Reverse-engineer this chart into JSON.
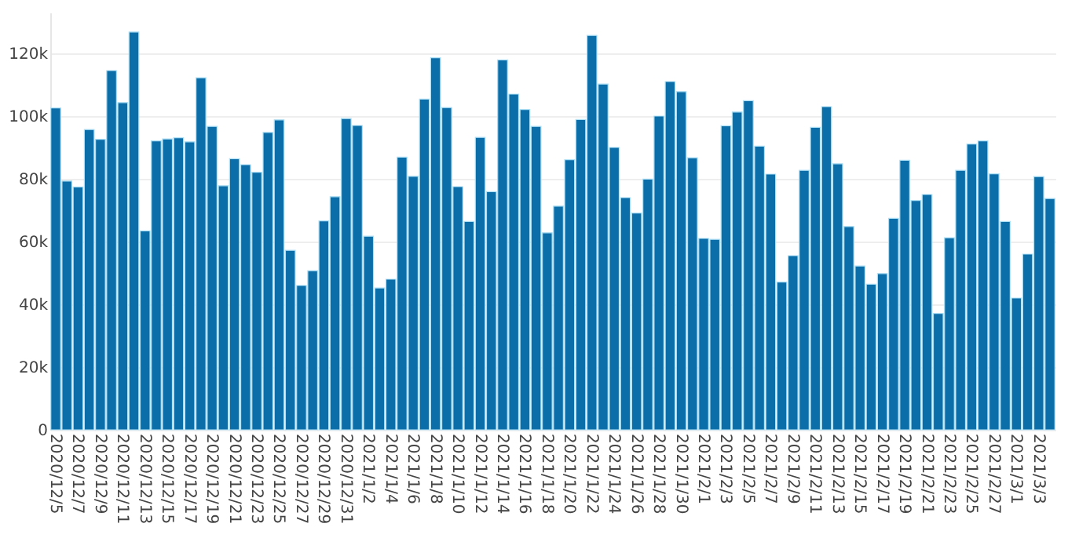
{
  "chart_data": {
    "type": "bar",
    "color": "#0b6ea9",
    "grid": "y",
    "categories": [
      "2020/12/5",
      null,
      "2020/12/7",
      null,
      "2020/12/9",
      null,
      "2020/12/11",
      null,
      "2020/12/13",
      null,
      "2020/12/15",
      null,
      "2020/12/17",
      null,
      "2020/12/19",
      null,
      "2020/12/21",
      null,
      "2020/12/23",
      null,
      "2020/12/25",
      null,
      "2020/12/27",
      null,
      "2020/12/29",
      null,
      "2020/12/31",
      null,
      "2021/1/2",
      null,
      "2021/1/4",
      null,
      "2021/1/6",
      null,
      "2021/1/8",
      null,
      "2021/1/10",
      null,
      "2021/1/12",
      null,
      "2021/1/14",
      null,
      "2021/1/16",
      null,
      "2021/1/18",
      null,
      "2021/1/20",
      null,
      "2021/1/22",
      null,
      "2021/1/24",
      null,
      "2021/1/26",
      null,
      "2021/1/28",
      null,
      "2021/1/30",
      null,
      "2021/2/1",
      null,
      "2021/2/3",
      null,
      "2021/2/5",
      null,
      "2021/2/7",
      null,
      "2021/2/9",
      null,
      "2021/2/11",
      null,
      "2021/2/13",
      null,
      "2021/2/15",
      null,
      "2021/2/17",
      null,
      "2021/2/19",
      null,
      "2021/2/21",
      null,
      "2021/2/23",
      null,
      "2021/2/25",
      null,
      "2021/2/27",
      null,
      "2021/3/1",
      null,
      "2021/3/3",
      null
    ],
    "values": [
      102600,
      79300,
      77400,
      95700,
      92600,
      114500,
      104300,
      126800,
      63400,
      92100,
      92700,
      93100,
      91800,
      112200,
      96700,
      77800,
      86400,
      84500,
      82100,
      94800,
      98800,
      57200,
      46000,
      50700,
      66600,
      74300,
      99200,
      97000,
      61700,
      45200,
      48000,
      86900,
      80800,
      105400,
      118600,
      102700,
      77500,
      66400,
      93200,
      75900,
      117900,
      107000,
      102100,
      96700,
      62800,
      71300,
      86100,
      98900,
      125700,
      110200,
      90000,
      74000,
      69100,
      79900,
      100000,
      111000,
      107800,
      86700,
      61000,
      60700,
      96900,
      101300,
      104900,
      90400,
      81500,
      47100,
      55500,
      82700,
      96400,
      103000,
      84800,
      64800,
      52200,
      46400,
      49800,
      67400,
      85900,
      73100,
      75000,
      37100,
      61200,
      82700,
      91100,
      92100,
      81600,
      66400,
      42000,
      56000,
      80700,
      73700
    ],
    "ylim": [
      0,
      133000
    ],
    "yticks": [
      {
        "value": 0,
        "label": "0"
      },
      {
        "value": 20000,
        "label": "20k"
      },
      {
        "value": 40000,
        "label": "40k"
      },
      {
        "value": 60000,
        "label": "60k"
      },
      {
        "value": 80000,
        "label": "80k"
      },
      {
        "value": 100000,
        "label": "100k"
      },
      {
        "value": 120000,
        "label": "120k"
      }
    ]
  }
}
